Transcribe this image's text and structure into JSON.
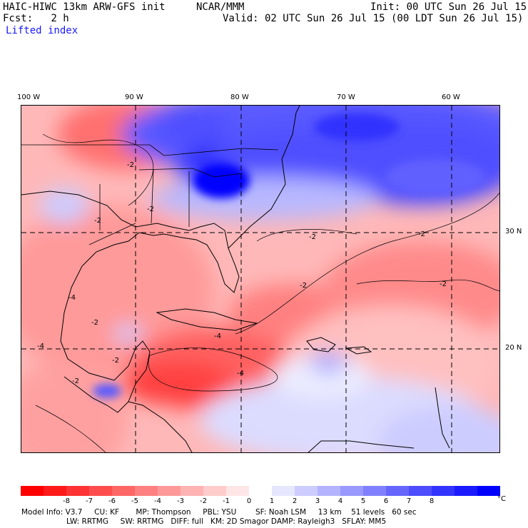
{
  "header": {
    "model": "HAIC-HIWC 13km ARW-GFS init",
    "org": "NCAR/MMM",
    "init": "Init: 00 UTC Sun 26 Jul 15",
    "fcst": "Fcst:   2 h",
    "valid": "Valid: 02 UTC Sun 26 Jul 15 (00 LDT Sun 26 Jul 15)",
    "field": "Lifted index"
  },
  "map": {
    "lon_labels": [
      "100 W",
      "90 W",
      "80 W",
      "70 W",
      "60 W"
    ],
    "lat_labels": [
      "30 N",
      "20 N"
    ],
    "contour_labels": [
      "-2",
      "-2",
      "-2",
      "-2",
      "-2",
      "-2",
      "-2",
      "-2",
      "-2",
      "-2",
      "-4",
      "-4",
      "-4",
      "-4"
    ]
  },
  "colorbar": {
    "labels": [
      "-8",
      "-7",
      "-6",
      "-5",
      "-4",
      "-3",
      "-2",
      "-1",
      "0",
      "1",
      "2",
      "3",
      "4",
      "5",
      "6",
      "7",
      "8"
    ],
    "unit": "°C",
    "colors": [
      "#ff0000",
      "#ff1a1a",
      "#ff3333",
      "#ff4d4d",
      "#ff6666",
      "#ff8080",
      "#ff9999",
      "#ffb3b3",
      "#ffcccc",
      "#ffe6e6",
      "#ffffff",
      "#e6e6ff",
      "#ccccff",
      "#b3b3ff",
      "#9999ff",
      "#8080ff",
      "#6666ff",
      "#4d4dff",
      "#3333ff",
      "#1a1aff",
      "#0000ff"
    ]
  },
  "model_info": {
    "line1": "Model Info: V3.7     CU: KF       MP: Thompson     PBL: YSU        SF: Noah LSM     13 km    51 levels   60 sec",
    "line2": "LW: RRTMG     SW: RRTMG   DIFF: full   KM: 2D Smagor DAMP: Rayleigh3   SFLAY: MM5"
  }
}
